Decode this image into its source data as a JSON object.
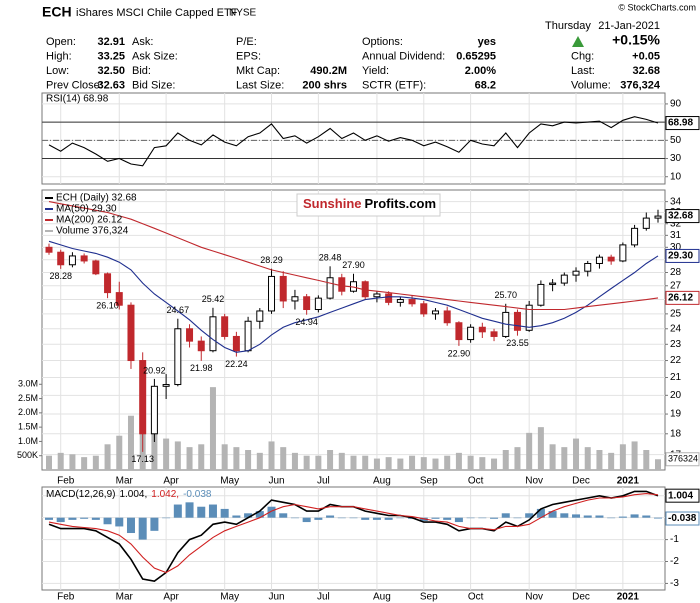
{
  "header": {
    "symbol": "ECH",
    "name": "iShares MSCI Chile Capped ETF",
    "exchange": "NYSE",
    "credit": "© StockCharts.com",
    "day": "Thursday",
    "date": "21-Jan-2021",
    "change_pct": "+0.15%",
    "columns": [
      [
        {
          "label": "Open:",
          "value": "32.91"
        },
        {
          "label": "High:",
          "value": "33.25"
        },
        {
          "label": "Low:",
          "value": "32.50"
        },
        {
          "label": "Prev Close:",
          "value": "32.63"
        }
      ],
      [
        {
          "label": "Ask:"
        },
        {
          "label": "Ask Size:"
        },
        {
          "label": "Bid:"
        },
        {
          "label": "Bid Size:"
        }
      ],
      [
        {
          "label": "P/E:"
        },
        {
          "label": "EPS:"
        },
        {
          "label": "Mkt Cap:",
          "value": "490.2M"
        },
        {
          "label": "Last Size:",
          "value": "200 shrs"
        }
      ],
      [
        {
          "label": "Options:",
          "value": "yes"
        },
        {
          "label": "Annual Dividend:",
          "value": "0.65295"
        },
        {
          "label": "Yield:",
          "value": "2.00%"
        },
        {
          "label": "SCTR (ETF):",
          "value": "68.2"
        }
      ]
    ],
    "right": [
      {
        "label": "Chg:",
        "value": "+0.05"
      },
      {
        "label": "Last:",
        "value": "32.68"
      },
      {
        "label": "Volume:",
        "value": "376,324"
      }
    ]
  },
  "chart_data": [
    {
      "type": "line",
      "title": "RSI(14) 68.98",
      "ylim": [
        2,
        102
      ],
      "yticks": [
        10,
        30,
        50,
        70,
        90
      ],
      "grid": true,
      "reference_lines": [
        30,
        50,
        70
      ],
      "series": [
        {
          "color": "#000000",
          "last_label": "68.98",
          "values": [
            45,
            38,
            47,
            42,
            35,
            27,
            30,
            24,
            22,
            42,
            44,
            58,
            50,
            45,
            56,
            48,
            44,
            54,
            58,
            68,
            52,
            55,
            47,
            54,
            63,
            52,
            58,
            50,
            55,
            49,
            53,
            50,
            44,
            48,
            43,
            37,
            50,
            46,
            44,
            58,
            42,
            58,
            68,
            66,
            70,
            69,
            70,
            71,
            64,
            72,
            76,
            73,
            68.98
          ]
        }
      ]
    },
    {
      "type": "candlestick",
      "log": true,
      "grid": true,
      "ylim": [
        16.3,
        35.1
      ],
      "yticks": [
        17,
        18,
        19,
        20,
        21,
        22,
        23,
        24,
        25,
        26,
        27,
        28,
        29,
        30,
        31,
        32,
        33,
        34
      ],
      "y2lim": [
        0,
        9800000
      ],
      "y2ticks": [
        {
          "value": 500000,
          "label": "500K"
        },
        {
          "value": 1000000,
          "label": "1.0M"
        },
        {
          "value": 1500000,
          "label": "1.5M"
        },
        {
          "value": 2000000,
          "label": "2.0M"
        },
        {
          "value": 2500000,
          "label": "2.5M"
        },
        {
          "value": 3000000,
          "label": "3.0M"
        }
      ],
      "categories": [
        null,
        "Feb",
        null,
        null,
        null,
        null,
        "Mar",
        null,
        null,
        null,
        "Apr",
        null,
        null,
        null,
        null,
        "May",
        null,
        null,
        null,
        "Jun",
        null,
        null,
        null,
        "Jul",
        null,
        null,
        null,
        null,
        "Aug",
        null,
        null,
        null,
        "Sep",
        null,
        null,
        null,
        "Oct",
        null,
        null,
        null,
        null,
        "Nov",
        null,
        null,
        null,
        "Dec",
        null,
        null,
        null,
        "2021",
        null,
        null,
        null
      ],
      "watermark": {
        "left": "Sunshine",
        "right": "Profits.com"
      },
      "series": [
        {
          "type": "candlestick",
          "name": "ECH (Daily) 32.68",
          "color": "#000000",
          "down_color": "#c0282d",
          "last_label": "32.68",
          "open": [
            30.0,
            29.6,
            28.6,
            29.3,
            28.9,
            27.9,
            26.5,
            25.6,
            22.0,
            18.0,
            20.5,
            20.6,
            24.0,
            23.2,
            22.6,
            24.8,
            23.5,
            22.6,
            24.5,
            25.2,
            27.7,
            25.9,
            26.2,
            25.3,
            26.1,
            27.6,
            26.6,
            27.3,
            26.2,
            26.4,
            25.8,
            26.0,
            25.7,
            25.0,
            25.2,
            24.4,
            23.3,
            24.1,
            23.8,
            23.5,
            25.1,
            23.9,
            25.6,
            27.1,
            27.2,
            27.8,
            28.1,
            28.7,
            29.2,
            28.9,
            30.2,
            31.6,
            32.5
          ],
          "high": [
            30.3,
            29.8,
            29.6,
            29.5,
            29.0,
            28.0,
            27.3,
            25.8,
            22.5,
            20.92,
            21.2,
            24.67,
            24.3,
            23.5,
            25.42,
            25.0,
            23.8,
            24.8,
            25.4,
            28.29,
            28.1,
            26.7,
            26.4,
            26.3,
            28.48,
            27.9,
            27.9,
            27.4,
            26.6,
            26.6,
            26.2,
            26.3,
            25.9,
            25.4,
            25.5,
            24.5,
            24.3,
            24.4,
            24.0,
            25.7,
            25.3,
            25.9,
            27.4,
            27.5,
            28.0,
            28.4,
            28.9,
            29.4,
            29.4,
            30.4,
            31.9,
            33.0,
            33.25
          ],
          "low": [
            29.4,
            28.28,
            28.4,
            28.7,
            27.8,
            26.1,
            25.3,
            21.5,
            17.13,
            17.6,
            19.8,
            20.5,
            22.8,
            21.98,
            22.5,
            23.3,
            22.24,
            22.5,
            24.0,
            25.0,
            25.4,
            25.3,
            24.94,
            25.1,
            26.0,
            26.3,
            26.5,
            26.0,
            25.8,
            25.6,
            25.5,
            25.5,
            24.8,
            24.6,
            24.2,
            22.9,
            23.1,
            23.4,
            23.2,
            23.4,
            23.55,
            23.8,
            25.5,
            26.6,
            27.0,
            27.3,
            27.7,
            28.3,
            28.6,
            28.8,
            30.0,
            31.4,
            32.1
          ],
          "close": [
            29.6,
            28.6,
            29.3,
            28.9,
            27.9,
            26.5,
            25.6,
            22.0,
            18.0,
            20.5,
            20.6,
            24.0,
            23.2,
            22.6,
            24.8,
            23.5,
            22.6,
            24.5,
            25.2,
            27.7,
            25.9,
            26.2,
            25.3,
            26.1,
            27.6,
            26.6,
            27.3,
            26.2,
            26.4,
            25.8,
            26.0,
            25.7,
            25.0,
            25.2,
            24.4,
            23.3,
            24.1,
            23.8,
            23.5,
            25.1,
            23.9,
            25.6,
            27.1,
            27.2,
            27.8,
            28.1,
            28.7,
            29.2,
            28.9,
            30.2,
            31.6,
            32.5,
            32.68
          ]
        },
        {
          "type": "line",
          "name": "MA(50) 29.30",
          "color": "#1f2f8f",
          "last_label": "29.30",
          "values": [
            30.5,
            30.2,
            29.9,
            29.7,
            29.5,
            29.2,
            28.8,
            28.2,
            27.2,
            26.4,
            25.8,
            25.2,
            24.6,
            23.9,
            23.3,
            22.8,
            22.5,
            22.6,
            23.0,
            23.6,
            24.1,
            24.4,
            24.6,
            24.8,
            25.1,
            25.4,
            25.7,
            26.0,
            26.1,
            26.2,
            26.2,
            26.1,
            26.0,
            25.8,
            25.6,
            25.3,
            25.0,
            24.7,
            24.5,
            24.3,
            24.2,
            24.1,
            24.2,
            24.4,
            24.7,
            25.1,
            25.6,
            26.2,
            26.8,
            27.4,
            28.0,
            28.7,
            29.3
          ]
        },
        {
          "type": "line",
          "name": "MA(200) 26.12",
          "color": "#c0282d",
          "last_label": "26.12",
          "values": [
            34.0,
            33.8,
            33.6,
            33.4,
            33.2,
            33.0,
            32.7,
            32.4,
            32.0,
            31.6,
            31.2,
            30.8,
            30.4,
            30.0,
            29.7,
            29.4,
            29.1,
            28.8,
            28.5,
            28.2,
            28.0,
            27.8,
            27.6,
            27.4,
            27.2,
            27.0,
            26.9,
            26.7,
            26.6,
            26.5,
            26.4,
            26.3,
            26.2,
            26.1,
            26.0,
            25.9,
            25.8,
            25.7,
            25.6,
            25.5,
            25.4,
            25.3,
            25.3,
            25.3,
            25.3,
            25.4,
            25.5,
            25.6,
            25.7,
            25.8,
            25.9,
            26.0,
            26.12
          ]
        },
        {
          "type": "bar",
          "axis": "y2",
          "name": "Volume 376,324",
          "color": "#b4b4b4",
          "last_label": "376324",
          "values": [
            500000,
            600000,
            550000,
            450000,
            500000,
            900000,
            1200000,
            1900000,
            2400000,
            1600000,
            1100000,
            1000000,
            800000,
            900000,
            2900000,
            900000,
            800000,
            700000,
            600000,
            1000000,
            800000,
            600000,
            500000,
            500000,
            700000,
            600000,
            500000,
            500000,
            400000,
            450000,
            400000,
            500000,
            450000,
            400000,
            500000,
            600000,
            500000,
            450000,
            400000,
            700000,
            800000,
            1300000,
            1500000,
            900000,
            800000,
            1100000,
            800000,
            700000,
            600000,
            900000,
            1000000,
            700000,
            376324
          ]
        }
      ],
      "annotations": [
        {
          "label": "28.28",
          "value": 28.28,
          "index": 1
        },
        {
          "label": "26.10",
          "value": 26.1,
          "index": 5
        },
        {
          "label": "17.13",
          "value": 17.13,
          "index": 8
        },
        {
          "label": "20.92",
          "value": 20.92,
          "index": 9
        },
        {
          "label": "24.67",
          "value": 24.67,
          "index": 11
        },
        {
          "label": "21.98",
          "value": 21.98,
          "index": 13
        },
        {
          "label": "25.42",
          "value": 25.42,
          "index": 14
        },
        {
          "label": "22.24",
          "value": 22.24,
          "index": 16
        },
        {
          "label": "28.29",
          "value": 28.29,
          "index": 19
        },
        {
          "label": "24.94",
          "value": 24.94,
          "index": 22
        },
        {
          "label": "28.48",
          "value": 28.48,
          "index": 24
        },
        {
          "label": "27.90",
          "value": 27.9,
          "index": 26
        },
        {
          "label": "22.90",
          "value": 22.9,
          "index": 35
        },
        {
          "label": "25.70",
          "value": 25.7,
          "index": 39
        },
        {
          "label": "23.55",
          "value": 23.55,
          "index": 40
        }
      ]
    },
    {
      "type": "line",
      "title": "MACD(12,26,9)",
      "ylim": [
        -3.3,
        1.4
      ],
      "yticks": [
        -3,
        -2,
        -1,
        0,
        1
      ],
      "grid": true,
      "series": [
        {
          "type": "line",
          "color": "#000000",
          "legend": "1.004,",
          "last_label": "1.004",
          "values": [
            -0.3,
            -0.5,
            -0.5,
            -0.5,
            -0.6,
            -0.9,
            -1.2,
            -1.9,
            -2.8,
            -2.9,
            -2.5,
            -1.6,
            -1.0,
            -0.8,
            -0.3,
            -0.2,
            -0.3,
            0.0,
            0.3,
            0.8,
            0.7,
            0.6,
            0.3,
            0.3,
            0.6,
            0.5,
            0.5,
            0.3,
            0.2,
            0.1,
            0.1,
            0.0,
            -0.2,
            -0.2,
            -0.3,
            -0.6,
            -0.5,
            -0.5,
            -0.6,
            -0.2,
            -0.4,
            -0.1,
            0.4,
            0.6,
            0.7,
            0.8,
            0.9,
            1.0,
            0.9,
            1.0,
            1.2,
            1.2,
            1.004
          ]
        },
        {
          "type": "line",
          "color": "#d02020",
          "legend": "1.042,",
          "values": [
            -0.2,
            -0.3,
            -0.4,
            -0.45,
            -0.5,
            -0.6,
            -0.8,
            -1.2,
            -1.8,
            -2.3,
            -2.5,
            -2.2,
            -1.7,
            -1.3,
            -0.9,
            -0.6,
            -0.4,
            -0.2,
            0.0,
            0.3,
            0.5,
            0.6,
            0.5,
            0.4,
            0.5,
            0.5,
            0.5,
            0.4,
            0.3,
            0.2,
            0.1,
            0.05,
            -0.05,
            -0.15,
            -0.2,
            -0.4,
            -0.5,
            -0.5,
            -0.55,
            -0.4,
            -0.4,
            -0.3,
            0.0,
            0.3,
            0.5,
            0.65,
            0.8,
            0.9,
            0.9,
            0.95,
            1.05,
            1.1,
            1.042
          ]
        },
        {
          "type": "bar",
          "color": "#5b8db8",
          "legend": "-0.038",
          "last_label": "-0.038",
          "values": [
            -0.1,
            -0.2,
            -0.1,
            -0.05,
            -0.1,
            -0.3,
            -0.4,
            -0.7,
            -1.0,
            -0.6,
            0.0,
            0.6,
            0.7,
            0.5,
            0.6,
            0.4,
            0.1,
            0.2,
            0.3,
            0.5,
            0.2,
            0.0,
            -0.2,
            -0.1,
            0.1,
            0.0,
            0.0,
            -0.1,
            -0.1,
            -0.1,
            0.0,
            -0.05,
            -0.15,
            -0.05,
            -0.1,
            -0.2,
            0.0,
            0.0,
            -0.05,
            0.2,
            0.0,
            0.2,
            0.4,
            0.3,
            0.2,
            0.15,
            0.1,
            0.1,
            0.0,
            0.05,
            0.15,
            0.1,
            -0.038
          ]
        }
      ]
    }
  ]
}
